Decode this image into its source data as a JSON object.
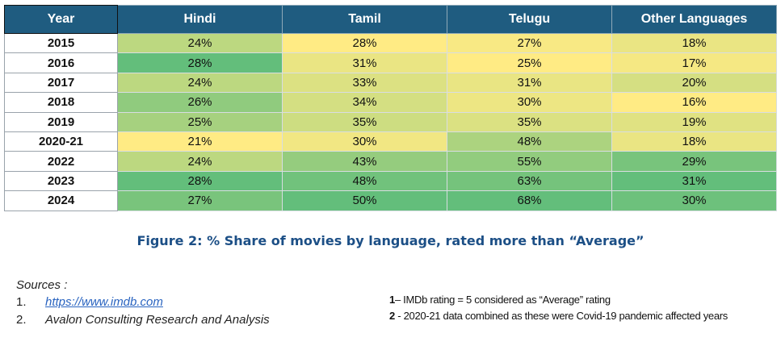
{
  "chart_data": {
    "type": "table",
    "columns": [
      "Year",
      "Hindi",
      "Tamil",
      "Telugu",
      "Other Languages"
    ],
    "rows": [
      {
        "year": "2015",
        "values": [
          24,
          28,
          27,
          18
        ]
      },
      {
        "year": "2016",
        "values": [
          28,
          31,
          25,
          17
        ]
      },
      {
        "year": "2017",
        "values": [
          24,
          33,
          31,
          20
        ]
      },
      {
        "year": "2018",
        "values": [
          26,
          34,
          30,
          16
        ]
      },
      {
        "year": "2019",
        "values": [
          25,
          35,
          35,
          19
        ]
      },
      {
        "year": "2020-21",
        "values": [
          21,
          30,
          48,
          18
        ]
      },
      {
        "year": "2022",
        "values": [
          24,
          43,
          55,
          29
        ]
      },
      {
        "year": "2023",
        "values": [
          28,
          48,
          63,
          31
        ]
      },
      {
        "year": "2024",
        "values": [
          27,
          50,
          68,
          30
        ]
      }
    ],
    "unit": "%",
    "title": "Figure 2: % Share of movies by language, rated more than “Average”",
    "color_scale": {
      "low": "#ffeb84",
      "high": "#63be7b"
    }
  },
  "header_color": "#1f5c80",
  "caption_color": "#1c4f86",
  "sources": {
    "title": "Sources :",
    "items": [
      {
        "num": "1.",
        "text": "https://www.imdb.com"
      },
      {
        "num": "2.",
        "text": "Avalon Consulting Research and Analysis"
      }
    ]
  },
  "notes": [
    {
      "num": "1",
      "text": "– IMDb rating = 5 considered as “Average” rating"
    },
    {
      "num": "2",
      "text": " - 2020-21 data combined as these were Covid-19 pandemic affected years"
    }
  ]
}
